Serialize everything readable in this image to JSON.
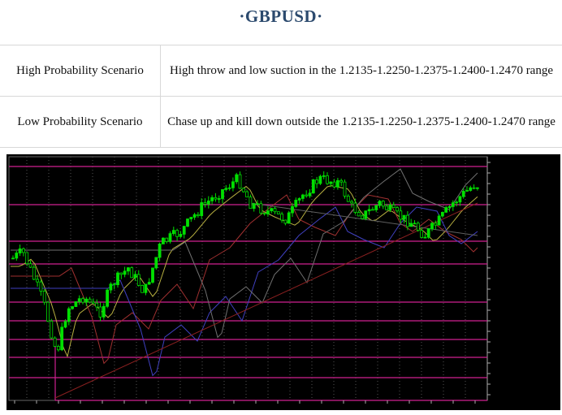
{
  "header": {
    "title": "·GBPUSD·"
  },
  "table": {
    "rows": [
      [
        "High Probability Scenario",
        "High throw and low suction in the 1.2135-1.2250-1.2375-1.2400-1.2470 range"
      ],
      [
        "Low Probability Scenario",
        "Chase up and kill down outside the 1.2135-1.2250-1.2375-1.2400-1.2470 range"
      ]
    ]
  }
}
